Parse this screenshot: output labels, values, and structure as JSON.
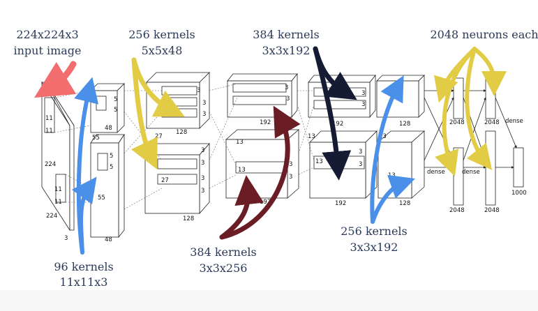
{
  "annotations": {
    "input": [
      "224x224x3",
      "input image"
    ],
    "conv1": [
      "96 kernels",
      "11x11x3"
    ],
    "conv2": [
      "256 kernels",
      "5x5x48"
    ],
    "conv3": [
      "384 kernels",
      "3x3x256"
    ],
    "conv4": [
      "384 kernels",
      "3x3x192"
    ],
    "conv5": [
      "256 kernels",
      "3x3x192"
    ],
    "fc": [
      "2048 neurons each"
    ]
  },
  "input_labels": {
    "side": "224",
    "side2": "224",
    "depth": "3",
    "k1": "11",
    "k2": "11",
    "k3": "11",
    "k4": "11"
  },
  "conv1_labels": {
    "a": "5",
    "b": "5",
    "c": "48",
    "d": "55",
    "e": "5",
    "f": "5",
    "g": "55",
    "h": "48"
  },
  "conv2_labels": {
    "a": "3",
    "b": "3",
    "c": "3",
    "d": "128",
    "e": "27",
    "f": "3",
    "g": "3",
    "h": "27",
    "i": "3",
    "j": "3",
    "k": "128"
  },
  "conv3_labels": {
    "a": "3",
    "b": "3",
    "c": "192",
    "d": "13",
    "e": "13",
    "f": "3",
    "g": "3",
    "h": "192"
  },
  "conv4_labels": {
    "a": "3",
    "b": "3",
    "c": "192",
    "d": "13",
    "e": "13",
    "f": "3",
    "g": "3",
    "h": "192"
  },
  "conv5_labels": {
    "a": "128",
    "b": "13",
    "c": "13",
    "d": "128"
  },
  "fc_labels": {
    "dense1": "dense",
    "dense2": "dense",
    "dense3": "dense",
    "n1": "2048",
    "n2": "2048",
    "n3": "2048",
    "n4": "2048",
    "n5": "1000"
  },
  "colors": {
    "red": "#f26d6d",
    "blue": "#4a90e8",
    "yellow": "#e2cc46",
    "maroon": "#6b1d26",
    "navy": "#141b33",
    "annotation_text": "#2b3a5a"
  }
}
